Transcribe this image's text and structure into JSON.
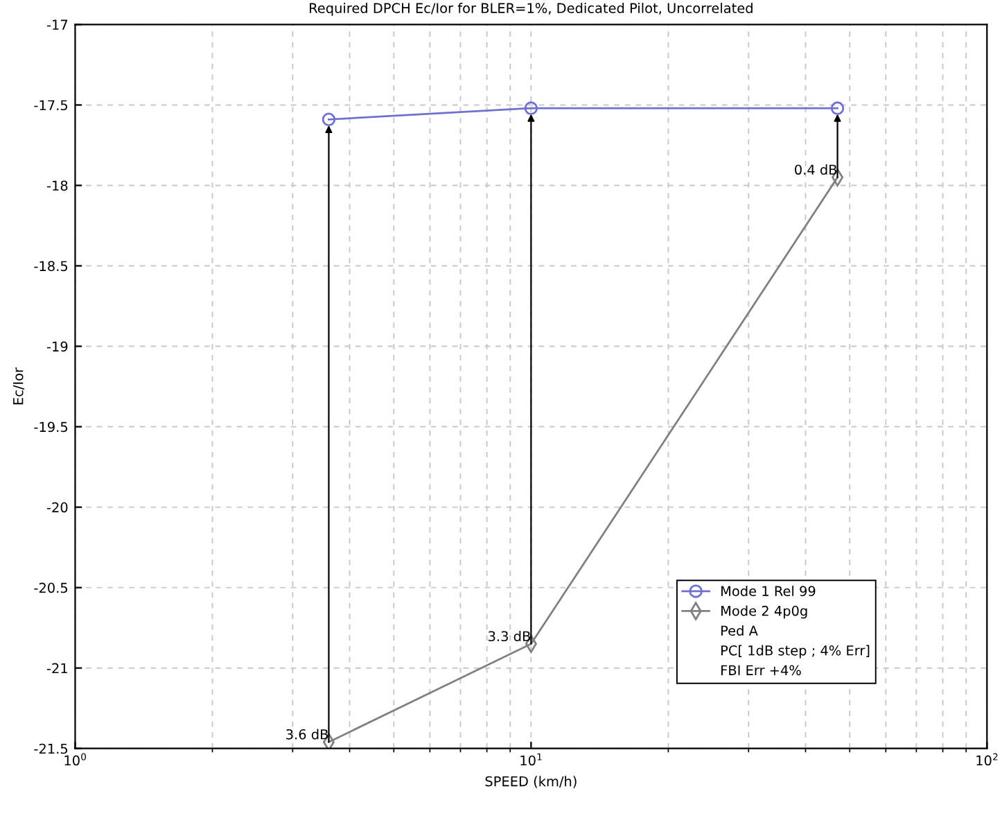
{
  "chart_data": {
    "type": "line",
    "title": "Required DPCH Ec/Ior for BLER=1%, Dedicated Pilot, Uncorrelated",
    "xlabel": "SPEED (km/h)",
    "ylabel": "Ec/Ior",
    "x": [
      3.6,
      10,
      47
    ],
    "log": "x",
    "xlim": [
      1,
      100
    ],
    "xticks": [
      {
        "value": 1,
        "label": "10$^{0}$"
      },
      {
        "value": 10,
        "label": "10$^{1}$"
      },
      {
        "value": 100,
        "label": "10$^{2}$"
      }
    ],
    "ylim": [
      -21.5,
      -17
    ],
    "yticks": [
      -21.5,
      -21,
      -20.5,
      -20,
      -19.5,
      -19,
      -18.5,
      -18,
      -17.5,
      -17
    ],
    "grid": true,
    "legend": "bottom right",
    "series": [
      {
        "name": "Mode 1 Rel 99",
        "color": "#7070d0",
        "values": [
          -17.59,
          -17.52,
          -17.52
        ],
        "marker": "circle"
      },
      {
        "name": "Mode 2 4p0g",
        "color": "#808080",
        "values": [
          -21.46,
          -20.85,
          -17.95
        ],
        "marker": "diamond"
      }
    ],
    "annotations": [
      {
        "text": "3.6 dB",
        "x": 3.6,
        "y": -17.59
      },
      {
        "text": "3.3 dB",
        "x": 10,
        "y": -17.52
      },
      {
        "text": "0.4 dB",
        "x": 47,
        "y": -17.52
      },
      "Ped A",
      "PC[ 1dB step ; 4% Err]",
      "FBI Err +4%"
    ]
  }
}
